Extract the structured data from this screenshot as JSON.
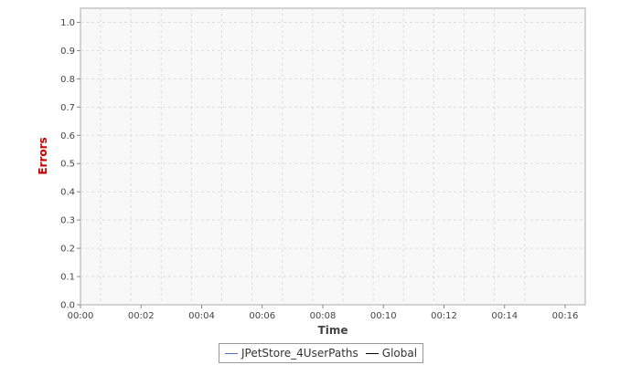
{
  "chart_data": {
    "type": "line",
    "xlabel": "Time",
    "ylabel": "Errors",
    "x_ticks": [
      "00:00",
      "00:02",
      "00:04",
      "00:06",
      "00:08",
      "00:10",
      "00:12",
      "00:14",
      "00:16"
    ],
    "y_ticks": [
      "0.0",
      "0.1",
      "0.2",
      "0.3",
      "0.4",
      "0.5",
      "0.6",
      "0.7",
      "0.8",
      "0.9",
      "1.0"
    ],
    "ylim": [
      0,
      1.05
    ],
    "xlim": [
      "00:00",
      "00:16:30"
    ],
    "grid": true,
    "legend_placement": "bottom-center",
    "series": [
      {
        "name": "JPetStore_4UserPaths",
        "color": "#4a6fc4",
        "values": []
      },
      {
        "name": "Global",
        "color": "#000000",
        "values": []
      }
    ]
  },
  "colors": {
    "plot_background": "#f8f8f8",
    "grid": "#dddddd",
    "ylabel": "#cc0000"
  }
}
